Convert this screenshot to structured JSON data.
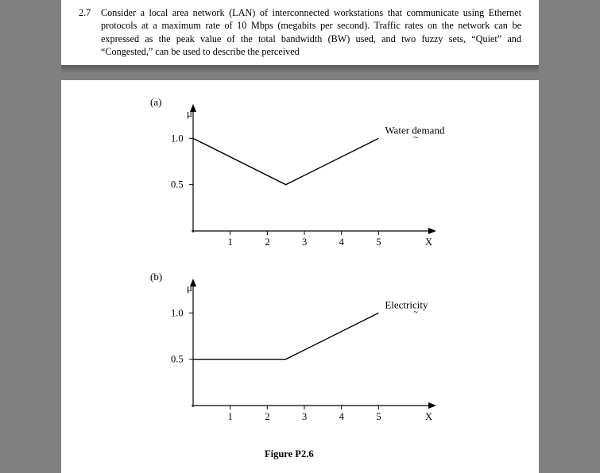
{
  "problem": {
    "number": "2.7",
    "text": "Consider a local area network (LAN) of interconnected workstations that communicate using Ethernet protocols at a maximum rate of 10 Mbps (megabits per second). Traffic rates on the network can be expressed as the peak value of the total bandwidth (BW) used, and two fuzzy sets, “Quiet” and “Congested,” can be used to describe the perceived"
  },
  "figure_caption": "Figure P2.6",
  "chart_a": {
    "part_label": "(a)",
    "y_label": "μ",
    "title": "Water demand",
    "x_ticks": [
      1,
      2,
      3,
      4,
      5
    ],
    "x_axis_label": "X",
    "y_ticks": [
      0.5,
      1.0
    ],
    "line_points": [
      {
        "x": 0,
        "y": 1.0
      },
      {
        "x": 2.5,
        "y": 0.5
      },
      {
        "x": 5,
        "y": 1.0
      }
    ],
    "axis_color": "#000000",
    "line_color": "#000000",
    "line_width": 1.4,
    "background": "#ffffff",
    "xlim": [
      0,
      6
    ],
    "ylim": [
      0,
      1.2
    ]
  },
  "chart_b": {
    "part_label": "(b)",
    "y_label": "μ",
    "title": "Electricity",
    "x_ticks": [
      1,
      2,
      3,
      4,
      5
    ],
    "x_axis_label": "X",
    "y_ticks": [
      0.5,
      1.0
    ],
    "line_points": [
      {
        "x": 0,
        "y": 0.5
      },
      {
        "x": 2.5,
        "y": 0.5
      },
      {
        "x": 5,
        "y": 1.0
      }
    ],
    "axis_color": "#000000",
    "line_color": "#000000",
    "line_width": 1.4,
    "background": "#ffffff",
    "xlim": [
      0,
      6
    ],
    "ylim": [
      0,
      1.2
    ]
  }
}
